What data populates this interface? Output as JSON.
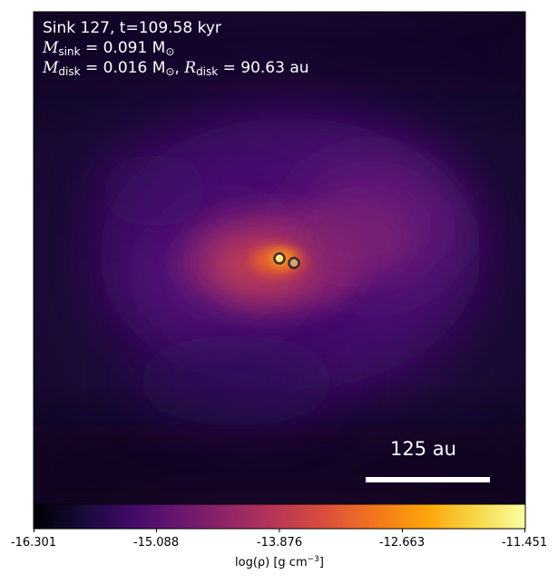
{
  "panel": {
    "title_text": "Sink 127, t=109.58 kyr",
    "sink_mass_symbol": "M",
    "sink_mass_subscript": "sink",
    "sink_mass_value": " = 0.091 M",
    "sink_mass_unit_sub": "⊙",
    "disk_mass_symbol": "M",
    "disk_mass_subscript": "disk",
    "disk_mass_value": " = 0.016 M",
    "disk_mass_unit_sub": "⊙",
    "disk_sep": ", ",
    "disk_radius_symbol": "R",
    "disk_radius_subscript": "disk",
    "disk_radius_value": " = 90.63 au"
  },
  "scalebar": {
    "label": "125 au"
  },
  "colorbar": {
    "colormap": "inferno",
    "ticks": [
      "-16.301",
      "-15.088",
      "-13.876",
      "-12.663",
      "-11.451"
    ],
    "tick_values": [
      -16.301,
      -15.088,
      -13.876,
      -12.663,
      -11.451
    ],
    "label_prefix": "log(ρ) [g cm",
    "label_exp": "−3",
    "label_suffix": "]"
  },
  "sinks": [
    {
      "name": "sink-a",
      "fill": "#ffe680"
    },
    {
      "name": "sink-b",
      "fill": "#d2a07a"
    }
  ]
}
